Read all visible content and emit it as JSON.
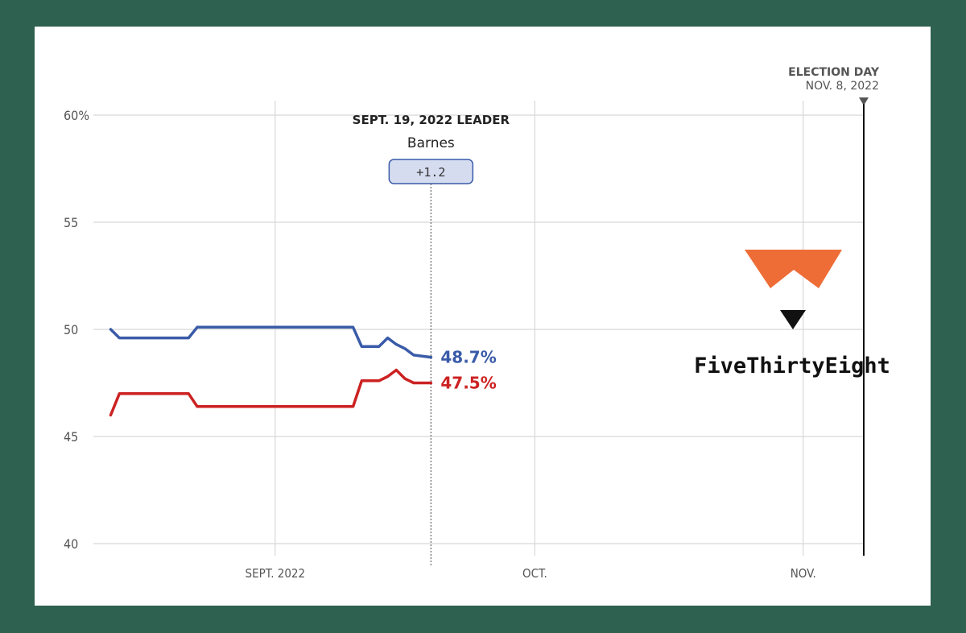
{
  "chart_data": {
    "type": "line",
    "yTickLabels": [
      "60%",
      "55",
      "50",
      "45",
      "40"
    ],
    "yTicks": [
      60,
      55,
      50,
      45,
      40
    ],
    "ylim": [
      40,
      60
    ],
    "xlim": [
      "2022-08-11",
      "2022-11-08"
    ],
    "xTicks": [
      {
        "date": "2022-09-01",
        "label": "SEPT. 2022"
      },
      {
        "date": "2022-10-01",
        "label": "OCT."
      },
      {
        "date": "2022-11-01",
        "label": "NOV."
      }
    ],
    "series": [
      {
        "color": "#3a5ba8",
        "end_label": "48.7%",
        "points": [
          [
            "2022-08-13",
            50.0
          ],
          [
            "2022-08-14",
            49.6
          ],
          [
            "2022-08-21",
            49.6
          ],
          [
            "2022-08-22",
            49.6
          ],
          [
            "2022-08-23",
            50.1
          ],
          [
            "2022-09-01",
            50.1
          ],
          [
            "2022-09-09",
            50.1
          ],
          [
            "2022-09-10",
            50.1
          ],
          [
            "2022-09-11",
            49.2
          ],
          [
            "2022-09-13",
            49.2
          ],
          [
            "2022-09-14",
            49.6
          ],
          [
            "2022-09-15",
            49.3
          ],
          [
            "2022-09-16",
            49.1
          ],
          [
            "2022-09-17",
            48.8
          ],
          [
            "2022-09-19",
            48.7
          ]
        ]
      },
      {
        "color": "#cc2222",
        "end_label": "47.5%",
        "points": [
          [
            "2022-08-13",
            46.0
          ],
          [
            "2022-08-14",
            47.0
          ],
          [
            "2022-08-21",
            47.0
          ],
          [
            "2022-08-22",
            47.0
          ],
          [
            "2022-08-23",
            46.4
          ],
          [
            "2022-09-01",
            46.4
          ],
          [
            "2022-09-09",
            46.4
          ],
          [
            "2022-09-10",
            46.4
          ],
          [
            "2022-09-11",
            47.6
          ],
          [
            "2022-09-13",
            47.6
          ],
          [
            "2022-09-14",
            47.8
          ],
          [
            "2022-09-15",
            48.1
          ],
          [
            "2022-09-16",
            47.7
          ],
          [
            "2022-09-17",
            47.5
          ],
          [
            "2022-09-19",
            47.5
          ]
        ]
      }
    ],
    "annotation": {
      "date": "2022-09-19",
      "title": "SEPT. 19, 2022 LEADER",
      "leader": "Barnes",
      "margin": "+1.2"
    },
    "election_day": {
      "date": "2022-11-08",
      "line1": "ELECTION DAY",
      "line2": "NOV. 8, 2022"
    },
    "grid": true
  },
  "logo": {
    "text": "FiveThirtyEight",
    "color": "#ee6d36"
  }
}
